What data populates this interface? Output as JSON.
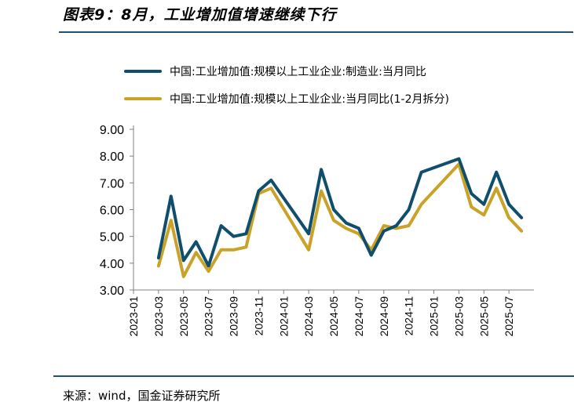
{
  "header": {
    "title": "图表9：8月，工业增加值增速继续下行"
  },
  "source": "来源：wind，国金证券研究所",
  "colors": {
    "series_manufacturing": "#104e6e",
    "series_total": "#c9a227",
    "rule": "#1f4e79"
  },
  "chart_data": {
    "type": "line",
    "title": "图表9：8月，工业增加值增速继续下行",
    "xlabel": "",
    "ylabel": "",
    "ylim": [
      3.0,
      9.0
    ],
    "yticks": [
      "9.00",
      "8.00",
      "7.00",
      "6.00",
      "5.00",
      "4.00",
      "3.00"
    ],
    "ytick_values": [
      9,
      8,
      7,
      6,
      5,
      4,
      3
    ],
    "x": [
      "2023-03",
      "2023-04",
      "2023-05",
      "2023-06",
      "2023-07",
      "2023-08",
      "2023-09",
      "2023-10",
      "2023-11",
      "2023-12",
      "2024-01",
      "2024-02",
      "2024-03",
      "2024-04",
      "2024-05",
      "2024-06",
      "2024-07",
      "2024-08",
      "2024-09",
      "2024-10",
      "2024-11",
      "2024-12",
      "2025-01",
      "2025-02",
      "2025-03",
      "2025-04",
      "2025-05",
      "2025-06",
      "2025-07",
      "2025-08"
    ],
    "xticks": [
      "2023-01",
      "2023-03",
      "2023-05",
      "2023-07",
      "2023-09",
      "2023-11",
      "2024-01",
      "2024-03",
      "2024-05",
      "2024-07",
      "2024-09",
      "2024-11",
      "2025-01",
      "2025-03",
      "2025-05",
      "2025-07"
    ],
    "series": [
      {
        "name": "中国:工业增加值:规模以上工业企业:制造业:当月同比",
        "color": "#104e6e",
        "values": [
          4.2,
          6.5,
          4.1,
          4.8,
          3.9,
          5.4,
          5.0,
          5.1,
          6.7,
          7.1,
          null,
          null,
          5.1,
          7.5,
          6.0,
          5.5,
          5.3,
          4.3,
          5.2,
          5.4,
          6.0,
          7.4,
          null,
          null,
          7.9,
          6.6,
          6.2,
          7.4,
          6.2,
          5.7
        ]
      },
      {
        "name": "中国:工业增加值:规模以上工业企业:当月同比(1-2月拆分)",
        "color": "#c9a227",
        "values": [
          3.9,
          5.6,
          3.5,
          4.4,
          3.7,
          4.5,
          4.5,
          4.6,
          6.6,
          6.8,
          null,
          null,
          4.5,
          6.7,
          5.6,
          5.3,
          5.1,
          4.5,
          5.4,
          5.3,
          5.4,
          6.2,
          null,
          null,
          7.7,
          6.1,
          5.8,
          6.8,
          5.7,
          5.2
        ]
      }
    ],
    "legend_position": "top-left",
    "grid": false
  }
}
